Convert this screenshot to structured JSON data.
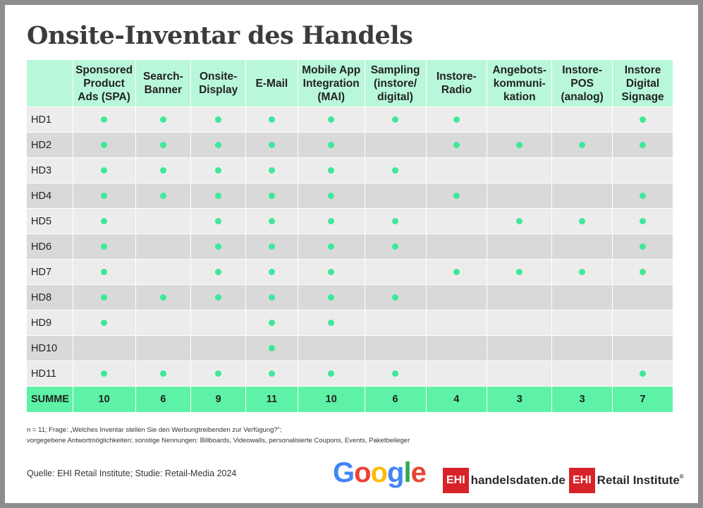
{
  "title": "Onsite-Inventar des Handels",
  "chart_data": {
    "type": "table",
    "columns": [
      "Sponsored Product Ads (SPA)",
      "Search-Banner",
      "Onsite-Display",
      "E-Mail",
      "Mobile App Integration (MAI)",
      "Sampling (instore/ digital)",
      "Instore-Radio",
      "Angebots-kommuni-kation",
      "Instore-POS (analog)",
      "Instore Digital Signage"
    ],
    "column_lines": [
      [
        "Sponsored",
        "Product",
        "Ads (SPA)"
      ],
      [
        "Search-",
        "Banner"
      ],
      [
        "Onsite-",
        "Display"
      ],
      [
        "E-Mail"
      ],
      [
        "Mobile App",
        "Integration",
        "(MAI)"
      ],
      [
        "Sampling",
        "(instore/",
        "digital)"
      ],
      [
        "Instore-",
        "Radio"
      ],
      [
        "Angebots-",
        "kommuni-",
        "kation"
      ],
      [
        "Instore-",
        "POS",
        "(analog)"
      ],
      [
        "Instore",
        "Digital",
        "Signage"
      ]
    ],
    "rows": [
      {
        "label": "HD1",
        "values": [
          1,
          1,
          1,
          1,
          1,
          1,
          1,
          0,
          0,
          1
        ]
      },
      {
        "label": "HD2",
        "values": [
          1,
          1,
          1,
          1,
          1,
          0,
          1,
          1,
          1,
          1
        ]
      },
      {
        "label": "HD3",
        "values": [
          1,
          1,
          1,
          1,
          1,
          1,
          0,
          0,
          0,
          0
        ]
      },
      {
        "label": "HD4",
        "values": [
          1,
          1,
          1,
          1,
          1,
          0,
          1,
          0,
          0,
          1
        ]
      },
      {
        "label": "HD5",
        "values": [
          1,
          0,
          1,
          1,
          1,
          1,
          0,
          1,
          1,
          1
        ]
      },
      {
        "label": "HD6",
        "values": [
          1,
          0,
          1,
          1,
          1,
          1,
          0,
          0,
          0,
          1
        ]
      },
      {
        "label": "HD7",
        "values": [
          1,
          0,
          1,
          1,
          1,
          0,
          1,
          1,
          1,
          1
        ]
      },
      {
        "label": "HD8",
        "values": [
          1,
          1,
          1,
          1,
          1,
          1,
          0,
          0,
          0,
          0
        ]
      },
      {
        "label": "HD9",
        "values": [
          1,
          0,
          0,
          1,
          1,
          0,
          0,
          0,
          0,
          0
        ]
      },
      {
        "label": "HD10",
        "values": [
          0,
          0,
          0,
          1,
          0,
          0,
          0,
          0,
          0,
          0
        ]
      },
      {
        "label": "HD11",
        "values": [
          1,
          1,
          1,
          1,
          1,
          1,
          0,
          0,
          0,
          1
        ]
      }
    ],
    "sum": {
      "label": "SUMME",
      "values": [
        10,
        6,
        9,
        11,
        10,
        6,
        4,
        3,
        3,
        7
      ]
    },
    "colors": {
      "header": "#b9f7da",
      "row_light": "#ececec",
      "row_dark": "#d9d9d9",
      "dot": "#3ee89a",
      "sum_row": "#5ef2a6"
    }
  },
  "notes": {
    "line1": "n = 11; Frage: „Welches Inventar stellen Sie den Werbungtreibenden zur Verfügung?“;",
    "line2": "vorgegebene Antwortmöglichkeiten; sonstige Nennungen: Billboards, Videowalls, personalisierte Coupons, Events, Paketbeileger"
  },
  "source": "Quelle: EHI Retail Institute; Studie: Retail-Media 2024",
  "logos": {
    "google": {
      "letters": [
        "G",
        "o",
        "o",
        "g",
        "l",
        "e"
      ],
      "colors": [
        "#4285f4",
        "#ea4335",
        "#fbbc05",
        "#4285f4",
        "#34a853",
        "#ea4335"
      ]
    },
    "handelsdaten": {
      "box": "EHI",
      "text": "handelsdaten.de"
    },
    "ehi": {
      "box": "EHI",
      "text": "Retail Institute",
      "mark": "®"
    }
  }
}
